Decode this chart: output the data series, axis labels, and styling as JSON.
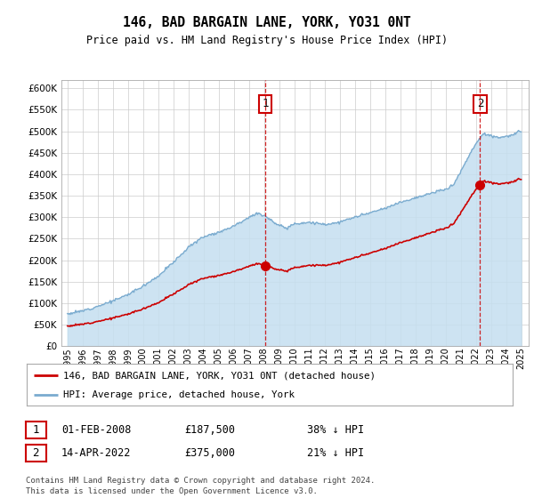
{
  "title": "146, BAD BARGAIN LANE, YORK, YO31 0NT",
  "subtitle": "Price paid vs. HM Land Registry's House Price Index (HPI)",
  "legend_property": "146, BAD BARGAIN LANE, YORK, YO31 0NT (detached house)",
  "legend_hpi": "HPI: Average price, detached house, York",
  "annotation1_label": "1",
  "annotation1_date": "01-FEB-2008",
  "annotation1_price": "£187,500",
  "annotation1_hpi": "38% ↓ HPI",
  "annotation2_label": "2",
  "annotation2_date": "14-APR-2022",
  "annotation2_price": "£375,000",
  "annotation2_hpi": "21% ↓ HPI",
  "footnote1": "Contains HM Land Registry data © Crown copyright and database right 2024.",
  "footnote2": "This data is licensed under the Open Government Licence v3.0.",
  "property_color": "#cc0000",
  "hpi_color": "#7aabcf",
  "hpi_fill_color": "#c5dff0",
  "plot_bg_color": "#ffffff",
  "grid_color": "#cccccc",
  "ylim": [
    0,
    620000
  ],
  "yticks": [
    0,
    50000,
    100000,
    150000,
    200000,
    250000,
    300000,
    350000,
    400000,
    450000,
    500000,
    550000,
    600000
  ],
  "anno1_x_year": 2008.09,
  "anno2_x_year": 2022.29,
  "xmin": 1994.6,
  "xmax": 2025.5
}
